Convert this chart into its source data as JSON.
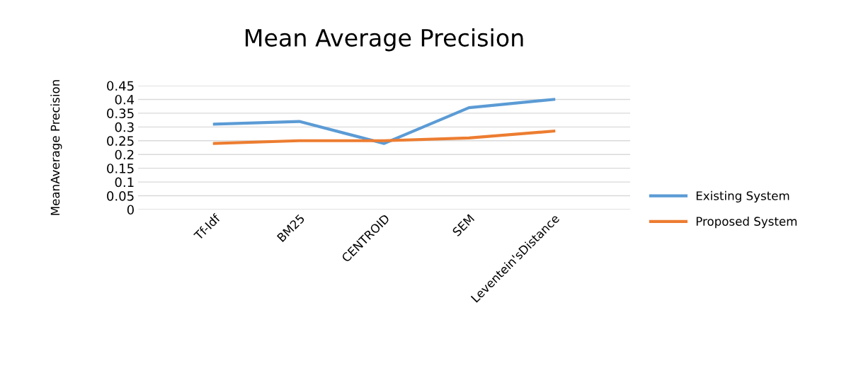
{
  "chart_data": {
    "type": "line",
    "title": "Mean Average Precision",
    "ylabel": "MeanAverage Precision",
    "categories": [
      "Tf-Idf",
      "BM25",
      "CENTROID",
      "SEM",
      "Leventein'sDistance"
    ],
    "series": [
      {
        "name": "Existing System",
        "color": "#5b9bd5",
        "values": [
          0.31,
          0.32,
          0.24,
          0.37,
          0.4
        ]
      },
      {
        "name": "Proposed System",
        "color": "#ed7d31",
        "values": [
          0.24,
          0.25,
          0.25,
          0.26,
          0.285
        ]
      }
    ],
    "ylim": [
      0,
      0.45
    ],
    "yticks": [
      0,
      0.05,
      0.1,
      0.15,
      0.2,
      0.25,
      0.3,
      0.35,
      0.4,
      0.45
    ],
    "grid": "y",
    "legend": "right",
    "marker": "none",
    "line_style": "solid"
  }
}
